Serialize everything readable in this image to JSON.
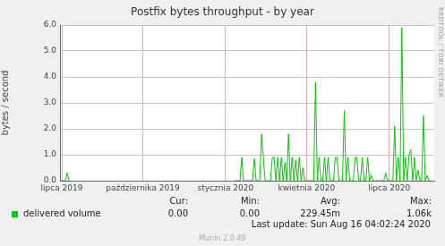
{
  "chart_data": {
    "type": "line",
    "title": "Postfix bytes throughput - by year",
    "y_label": "bytes / second",
    "side_text": "RRDTOOL / TOBI OETIKER",
    "categories": [
      null,
      "lipca 2019",
      null,
      null,
      null,
      null,
      null,
      null,
      null,
      null,
      null,
      null,
      null,
      null,
      null,
      null,
      null,
      null,
      null,
      null,
      null,
      null,
      null,
      null,
      null,
      null,
      null,
      null,
      null,
      null,
      null,
      null,
      null,
      null,
      null,
      null,
      null,
      null,
      null,
      null,
      null,
      null,
      null,
      null,
      null,
      null,
      "października 2019",
      null,
      null,
      null,
      null,
      null,
      null,
      null,
      null,
      null,
      null,
      null,
      null,
      null,
      null,
      null,
      null,
      null,
      null,
      null,
      null,
      null,
      null,
      null,
      null,
      null,
      null,
      null,
      null,
      null,
      null,
      null,
      null,
      null,
      null,
      null,
      null,
      null,
      null,
      null,
      null,
      null,
      null,
      null,
      null,
      null,
      "stycznia 2020",
      null,
      null,
      null,
      null,
      null,
      null,
      null,
      null,
      null,
      null,
      null,
      null,
      null,
      null,
      null,
      null,
      null,
      null,
      null,
      null,
      null,
      null,
      null,
      null,
      null,
      null,
      null,
      null,
      null,
      null,
      null,
      null,
      null,
      null,
      null,
      null,
      null,
      null,
      null,
      null,
      null,
      null,
      null,
      null,
      "kwietnia 2020",
      null,
      null,
      null,
      null,
      null,
      null,
      null,
      null,
      null,
      null,
      null,
      null,
      null,
      null,
      null,
      null,
      null,
      null,
      null,
      null,
      null,
      null,
      null,
      null,
      null,
      null,
      null,
      null,
      null,
      null,
      null,
      null,
      null,
      null,
      null,
      null,
      null,
      null,
      null,
      null,
      null,
      null,
      null,
      null,
      null,
      "lipca 2020",
      null,
      null,
      null,
      null,
      null,
      null,
      null,
      null,
      null,
      null,
      null,
      null,
      null,
      null,
      null,
      null,
      null,
      null,
      null,
      null,
      null,
      null,
      null,
      null,
      null
    ],
    "series": [
      {
        "name": "delivered volume",
        "color": "#00cc00",
        "values": [
          0,
          0,
          0,
          0,
          0.3,
          0,
          null,
          null,
          null,
          null,
          null,
          null,
          null,
          null,
          null,
          null,
          null,
          null,
          null,
          null,
          null,
          null,
          null,
          null,
          null,
          null,
          null,
          null,
          null,
          null,
          null,
          null,
          null,
          null,
          null,
          null,
          null,
          null,
          null,
          null,
          null,
          null,
          null,
          null,
          null,
          null,
          null,
          null,
          null,
          null,
          null,
          null,
          null,
          null,
          null,
          null,
          null,
          null,
          null,
          null,
          null,
          null,
          null,
          null,
          null,
          null,
          null,
          null,
          null,
          null,
          null,
          null,
          null,
          null,
          null,
          null,
          null,
          null,
          null,
          null,
          null,
          null,
          null,
          null,
          null,
          null,
          null,
          null,
          null,
          null,
          null,
          null,
          null,
          null,
          null,
          null,
          null,
          0,
          0,
          0,
          0,
          0.9,
          0,
          0,
          0,
          0,
          0,
          0,
          0.85,
          0,
          0,
          0,
          1.8,
          0.9,
          0,
          0,
          0,
          0,
          0.9,
          0.9,
          0,
          0.9,
          0,
          0.9,
          0,
          0.7,
          0,
          1.8,
          0,
          0.9,
          0,
          0.8,
          0,
          0.9,
          0,
          0.5,
          0,
          0,
          0,
          0,
          0,
          0,
          3.8,
          0,
          0.9,
          0,
          0,
          0.9,
          0,
          0.9,
          0,
          0,
          0,
          0.9,
          0.9,
          0,
          0,
          0,
          2.7,
          0,
          0.9,
          0,
          0,
          0,
          0.9,
          0.9,
          0,
          0,
          0.9,
          0,
          0,
          0.9,
          0,
          0.2,
          0,
          0,
          0,
          0,
          0,
          0,
          0,
          0.3,
          0,
          0,
          0,
          0,
          2.1,
          0,
          0.9,
          0,
          5.9,
          0,
          0.9,
          0,
          1.0,
          1.2,
          0,
          0.9,
          0,
          0.4,
          0,
          0,
          2.5,
          0,
          0.2,
          0,
          0,
          null,
          null
        ]
      }
    ],
    "ylim": [
      0,
      6
    ],
    "yticks": [
      {
        "value": 0,
        "label": "0.0"
      },
      {
        "value": 1,
        "label": "1.0"
      },
      {
        "value": 2,
        "label": "2.0"
      },
      {
        "value": 3,
        "label": "3.0"
      },
      {
        "value": 4,
        "label": "4.0"
      },
      {
        "value": 5,
        "label": "5.0"
      },
      {
        "value": 6,
        "label": "6.0"
      }
    ],
    "grid": true,
    "legend": "bottom",
    "stats": {
      "labels": [
        "Cur:",
        "Min:",
        "Avg:",
        "Max:"
      ],
      "values": [
        "0.00",
        "0.00",
        "229.45m",
        "1.06k"
      ]
    },
    "last_update": "Last update: Sun Aug 16 04:02:24 2020",
    "footer": "Munin 2.0.49"
  }
}
